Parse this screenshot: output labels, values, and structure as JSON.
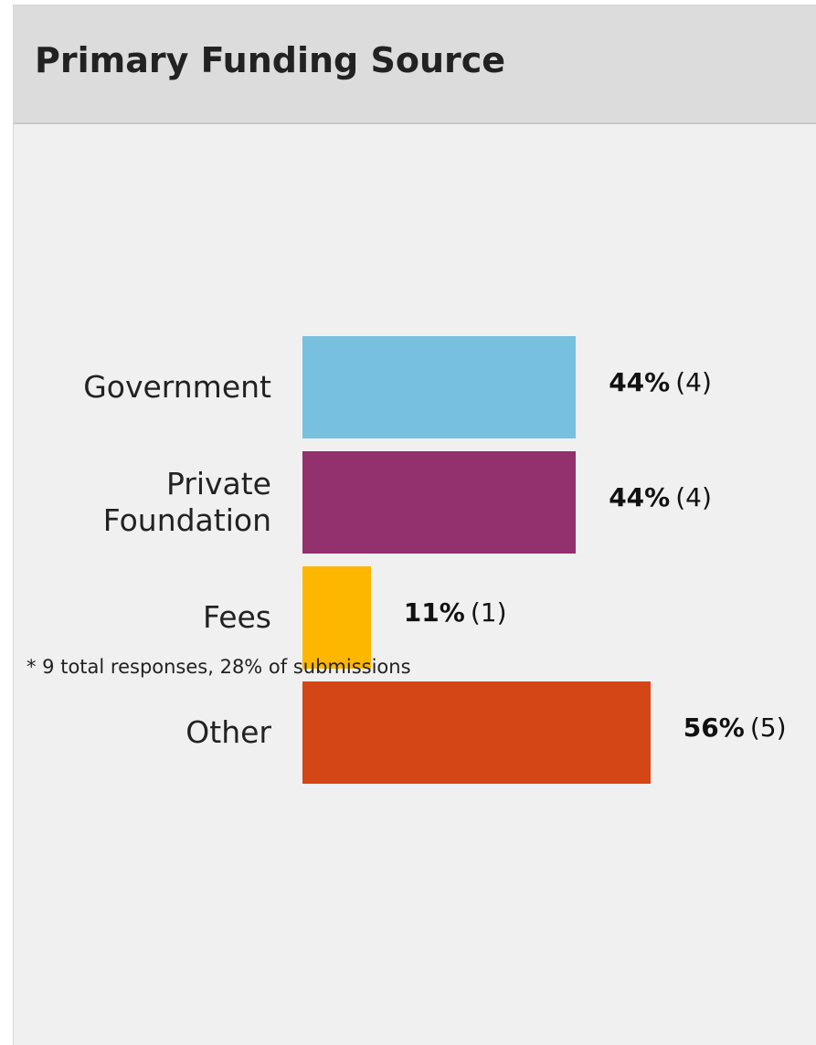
{
  "chart_data": {
    "type": "bar",
    "orientation": "horizontal",
    "title": "Primary Funding Source",
    "categories": [
      "Government",
      "Private Foundation",
      "Fees",
      "Other"
    ],
    "values": [
      44,
      44,
      11,
      56
    ],
    "value_labels": [
      "44%",
      "44%",
      "11%",
      "56%"
    ],
    "counts": [
      4,
      4,
      1,
      5
    ],
    "count_labels": [
      "(4)",
      "(4)",
      "(1)",
      "(5)"
    ],
    "colors": [
      "#77c0e0",
      "#93306e",
      "#fdb700",
      "#d44616"
    ],
    "footnote": "* 9 total responses, 28% of submissions"
  }
}
